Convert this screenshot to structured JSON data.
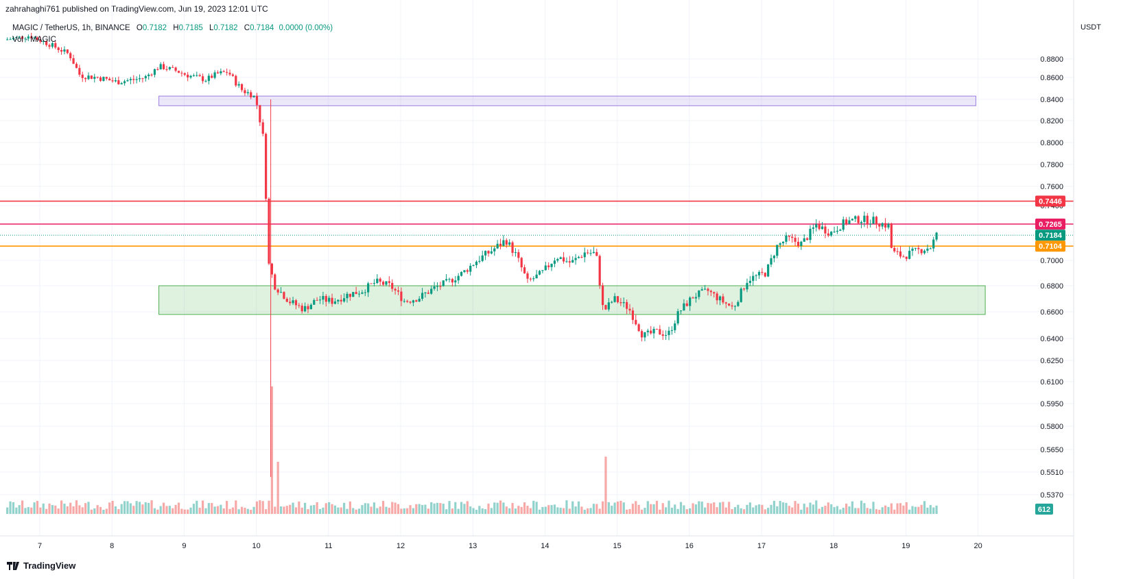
{
  "header": {
    "published_line": "zahrahaghi761 published on TradingView.com, Jun 19, 2023 12:01 UTC"
  },
  "legend": {
    "symbol": "MAGIC / TetherUS, 1h, BINANCE",
    "open_label": "O",
    "open": "0.7182",
    "high_label": "H",
    "high": "0.7185",
    "low_label": "L",
    "low": "0.7182",
    "close_label": "C",
    "close": "0.7184",
    "change": "0.0000 (0.00%)",
    "volume_line": "Vol · MAGIC"
  },
  "footer": {
    "brand": "TradingView"
  },
  "chart_data": {
    "type": "candlestick",
    "axis_unit": "USDT",
    "y_tick_labels": [
      "0.8800",
      "0.8600",
      "0.8400",
      "0.8200",
      "0.8000",
      "0.7800",
      "0.7600",
      "0.7400",
      "0.7000",
      "0.6800",
      "0.6600",
      "0.6400",
      "0.6250",
      "0.6100",
      "0.5950",
      "0.5800",
      "0.5650",
      "0.5510",
      "0.5370"
    ],
    "x_tick_labels": [
      "7",
      "8",
      "9",
      "10",
      "11",
      "12",
      "13",
      "14",
      "15",
      "16",
      "17",
      "18",
      "19",
      "20"
    ],
    "price_labels": [
      {
        "value": "0.7446",
        "color": "#f23645"
      },
      {
        "value": "0.7265",
        "color": "#e91e63"
      },
      {
        "value": "0.7184",
        "color": "#089981"
      },
      {
        "value": "0.7104",
        "color": "#ff9800"
      }
    ],
    "volume_label": {
      "value": "612",
      "color": "#26a69a"
    },
    "horizontal_levels": [
      {
        "value": 0.7446,
        "color": "#f23645"
      },
      {
        "value": 0.7265,
        "color": "#e91e63"
      },
      {
        "value": 0.7104,
        "color": "#ff9800"
      },
      {
        "value": 0.7184,
        "color": "#089981",
        "style": "dotted"
      }
    ],
    "zones": [
      {
        "from": 0.834,
        "to": 0.843,
        "start_day": 8.65,
        "end_day": 19.97,
        "color": "#9c7fe0"
      },
      {
        "from": 0.658,
        "to": 0.68,
        "start_day": 8.65,
        "end_day": 20.1,
        "color": "#4caf50"
      }
    ],
    "price_path": [
      [
        6.5,
        0.9
      ],
      [
        6.9,
        0.905
      ],
      [
        7.2,
        0.895
      ],
      [
        7.45,
        0.885
      ],
      [
        7.6,
        0.862
      ],
      [
        7.85,
        0.86
      ],
      [
        8.1,
        0.856
      ],
      [
        8.35,
        0.858
      ],
      [
        8.5,
        0.86
      ],
      [
        8.7,
        0.872
      ],
      [
        8.9,
        0.868
      ],
      [
        9.1,
        0.862
      ],
      [
        9.35,
        0.858
      ],
      [
        9.5,
        0.864
      ],
      [
        9.65,
        0.866
      ],
      [
        9.75,
        0.856
      ],
      [
        9.85,
        0.848
      ],
      [
        10.0,
        0.844
      ],
      [
        10.05,
        0.835
      ],
      [
        10.15,
        0.8
      ],
      [
        10.2,
        0.7
      ],
      [
        10.3,
        0.68
      ],
      [
        10.5,
        0.668
      ],
      [
        10.7,
        0.662
      ],
      [
        10.9,
        0.67
      ],
      [
        11.1,
        0.668
      ],
      [
        11.3,
        0.673
      ],
      [
        11.5,
        0.676
      ],
      [
        11.7,
        0.683
      ],
      [
        11.9,
        0.68
      ],
      [
        12.1,
        0.668
      ],
      [
        12.3,
        0.671
      ],
      [
        12.5,
        0.678
      ],
      [
        12.7,
        0.683
      ],
      [
        12.9,
        0.69
      ],
      [
        13.1,
        0.7
      ],
      [
        13.3,
        0.707
      ],
      [
        13.5,
        0.715
      ],
      [
        13.65,
        0.703
      ],
      [
        13.8,
        0.683
      ],
      [
        14.0,
        0.69
      ],
      [
        14.2,
        0.703
      ],
      [
        14.4,
        0.698
      ],
      [
        14.6,
        0.706
      ],
      [
        14.75,
        0.705
      ],
      [
        14.85,
        0.66
      ],
      [
        15.0,
        0.67
      ],
      [
        15.2,
        0.663
      ],
      [
        15.4,
        0.642
      ],
      [
        15.6,
        0.645
      ],
      [
        15.75,
        0.643
      ],
      [
        15.9,
        0.66
      ],
      [
        16.1,
        0.672
      ],
      [
        16.3,
        0.676
      ],
      [
        16.5,
        0.668
      ],
      [
        16.65,
        0.663
      ],
      [
        16.85,
        0.685
      ],
      [
        17.1,
        0.69
      ],
      [
        17.25,
        0.71
      ],
      [
        17.4,
        0.716
      ],
      [
        17.6,
        0.712
      ],
      [
        17.8,
        0.726
      ],
      [
        18.0,
        0.72
      ],
      [
        18.2,
        0.728
      ],
      [
        18.4,
        0.73
      ],
      [
        18.6,
        0.729
      ],
      [
        18.8,
        0.725
      ],
      [
        18.85,
        0.706
      ],
      [
        19.0,
        0.703
      ],
      [
        19.2,
        0.707
      ],
      [
        19.4,
        0.71
      ],
      [
        19.45,
        0.7184
      ]
    ],
    "volume_spikes": [
      {
        "day": 10.2,
        "rel": 0.98
      },
      {
        "day": 10.3,
        "rel": 0.4
      },
      {
        "day": 14.85,
        "rel": 0.44
      }
    ]
  }
}
